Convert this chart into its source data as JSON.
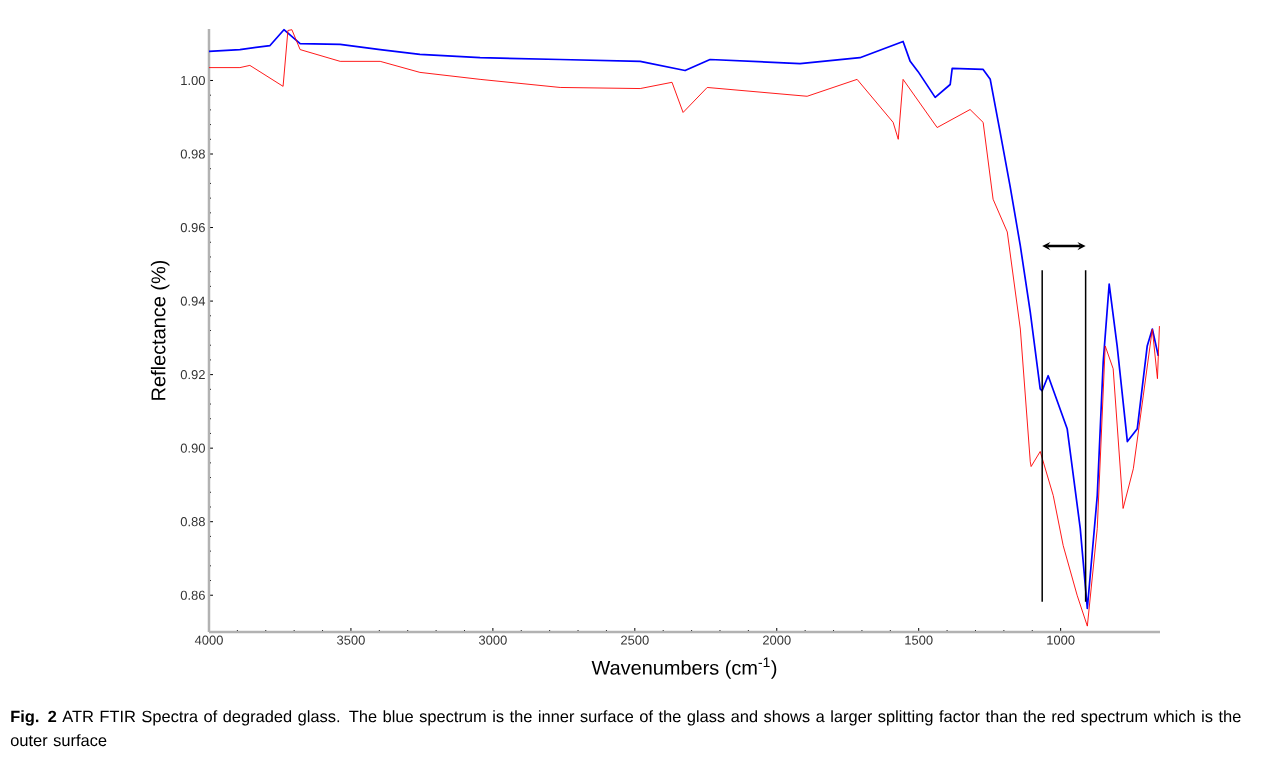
{
  "chart_data": {
    "type": "line",
    "xlabel": "Wavenumbers (cm$^{-1}$)",
    "ylabel": "Reflectance (%)",
    "xlim": [
      4000,
      650
    ],
    "xticks": [
      4000,
      3500,
      3000,
      2500,
      2000,
      1500,
      1000
    ],
    "ylim": [
      0.85,
      1.014
    ],
    "yticks": [
      {
        "value": 0.86,
        "label": "0.86"
      },
      {
        "value": 0.88,
        "label": "0.88"
      },
      {
        "value": 0.9,
        "label": "0.90"
      },
      {
        "value": 0.92,
        "label": "0.92"
      },
      {
        "value": 0.94,
        "label": "0.94"
      },
      {
        "value": 0.96,
        "label": "0.96"
      },
      {
        "value": 0.98,
        "label": "0.98"
      },
      {
        "value": 1.0,
        "label": "1.00"
      }
    ],
    "grid": false,
    "marker": "none",
    "line_style": "solid",
    "series": [
      {
        "color": "#0000ff",
        "x": [
          4000,
          3891,
          3785,
          3736,
          3679,
          3538,
          3397,
          3257,
          3045,
          2763,
          2481,
          2323,
          2235,
          1918,
          1707,
          1555,
          1530,
          1502,
          1442,
          1389,
          1382,
          1273,
          1248,
          1213,
          1178,
          1142,
          1107,
          1072,
          1065,
          1044,
          977,
          931,
          906,
          871,
          850,
          829,
          801,
          765,
          730,
          695,
          677,
          656
        ],
        "values": [
          1.0079,
          1.0084,
          1.0095,
          1.0138,
          1.01,
          1.0098,
          1.0084,
          1.0071,
          1.0062,
          1.0057,
          1.0052,
          1.0027,
          1.0057,
          1.0046,
          1.0062,
          1.0106,
          1.0052,
          1.0024,
          0.9954,
          0.9989,
          1.0033,
          1.003,
          1.0003,
          0.9859,
          0.9712,
          0.955,
          0.937,
          0.9161,
          0.9156,
          0.9197,
          0.9053,
          0.8782,
          0.8564,
          0.8871,
          0.9235,
          0.9446,
          0.9278,
          0.9018,
          0.9053,
          0.9278,
          0.9324,
          0.9251
        ]
      },
      {
        "color": "#ff0000",
        "x": [
          4000,
          3891,
          3856,
          3739,
          3722,
          3708,
          3679,
          3538,
          3397,
          3257,
          3045,
          2763,
          2481,
          2369,
          2330,
          2245,
          1893,
          1717,
          1590,
          1572,
          1555,
          1435,
          1319,
          1273,
          1238,
          1188,
          1142,
          1107,
          1104,
          1072,
          1026,
          991,
          942,
          906,
          871,
          843,
          815,
          780,
          744,
          709,
          677,
          659,
          652
        ],
        "values": [
          1.0035,
          1.0035,
          1.0041,
          0.9984,
          1.0136,
          1.0138,
          1.0084,
          1.0052,
          1.0052,
          1.0022,
          1.0003,
          0.9981,
          0.9978,
          0.9995,
          0.9913,
          0.9981,
          0.9957,
          1.0003,
          0.9886,
          0.984,
          1.0003,
          0.9872,
          0.9921,
          0.9886,
          0.9677,
          0.9588,
          0.9324,
          0.8963,
          0.895,
          0.8991,
          0.8871,
          0.8735,
          0.86,
          0.8516,
          0.8782,
          0.9278,
          0.9216,
          0.8836,
          0.8944,
          0.9142,
          0.9324,
          0.9189,
          0.9332
        ]
      }
    ],
    "ref_lines": [
      {
        "axis": "x",
        "value": 1065,
        "color": "#000000"
      },
      {
        "axis": "x",
        "value": 912,
        "color": "#000000"
      }
    ],
    "annotations": [
      "**Fig. 2**  ATR FTIR Spectra of degraded glass. The blue spectrum is the inner surface of the glass and shows a larger splitting factor than the red spectrum which is the outer surface"
    ]
  }
}
